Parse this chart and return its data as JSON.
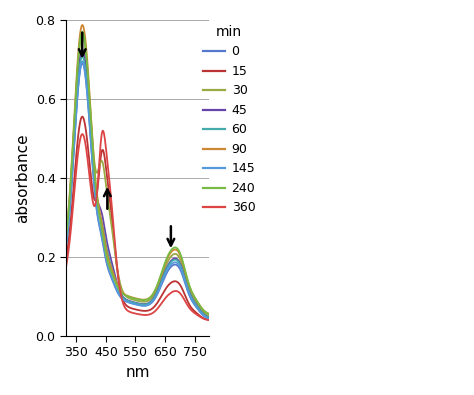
{
  "xlabel": "nm",
  "ylabel": "absorbance",
  "xlim": [
    315,
    800
  ],
  "ylim": [
    0,
    0.8
  ],
  "xticks": [
    350,
    450,
    550,
    650,
    750
  ],
  "yticks": [
    0,
    0.2,
    0.4,
    0.6,
    0.8
  ],
  "legend_title": "min",
  "background_color": "#ffffff",
  "series": [
    {
      "label": "0",
      "color": "#5577CC"
    },
    {
      "label": "15",
      "color": "#BB3333"
    },
    {
      "label": "30",
      "color": "#99AA44"
    },
    {
      "label": "45",
      "color": "#6644AA"
    },
    {
      "label": "60",
      "color": "#44AAAA"
    },
    {
      "label": "90",
      "color": "#CC8833"
    },
    {
      "label": "145",
      "color": "#5599DD"
    },
    {
      "label": "240",
      "color": "#77BB44"
    },
    {
      "label": "360",
      "color": "#DD4444"
    }
  ],
  "lw": 1.3,
  "arrow_down1": [
    370,
    0.775,
    0.695
  ],
  "arrow_up1": [
    455,
    0.315,
    0.385
  ],
  "arrow_down2": [
    670,
    0.285,
    0.215
  ]
}
